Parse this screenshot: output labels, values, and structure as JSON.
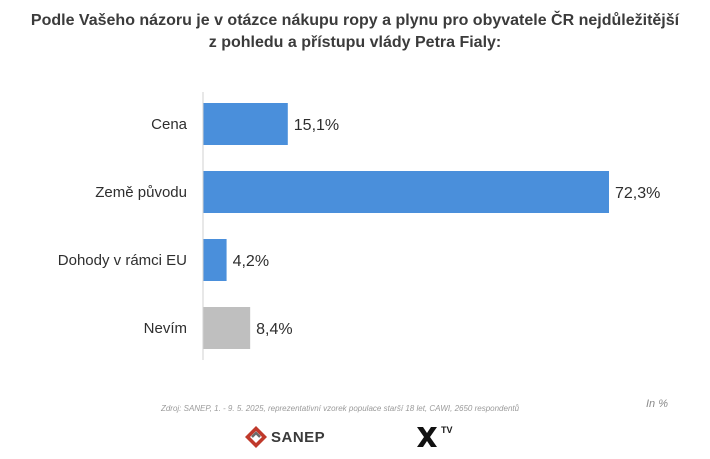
{
  "title_lines": [
    "Podle Vašeho názoru je v otázce nákupu ropy a plynu pro obyvatele ČR nejdůležitější",
    "z pohledu a přístupu vlády Petra Fialy:"
  ],
  "unit_note": "In %",
  "source": "Zdroj: SANEP, 1. - 9. 5. 2025, reprezentativní vzorek populace starší 18 let, CAWI, 2650 respondentů",
  "logos": {
    "sanep_text": "SANEP",
    "xtv_text": "TV",
    "sanep_color": "#c0392b"
  },
  "chart_data": {
    "type": "bar",
    "orientation": "horizontal",
    "categories": [
      "Cena",
      "Země původu",
      "Dohody v rámci EU",
      "Nevím"
    ],
    "values": [
      15.1,
      72.3,
      4.2,
      8.4
    ],
    "value_labels": [
      "15,1%",
      "72,3%",
      "4,2%",
      "8,4%"
    ],
    "colors": [
      "#4a8fdb",
      "#4a8fdb",
      "#4a8fdb",
      "#bfbfbf"
    ],
    "xlim": [
      0,
      72.3
    ],
    "grid": false,
    "legend": "none"
  }
}
